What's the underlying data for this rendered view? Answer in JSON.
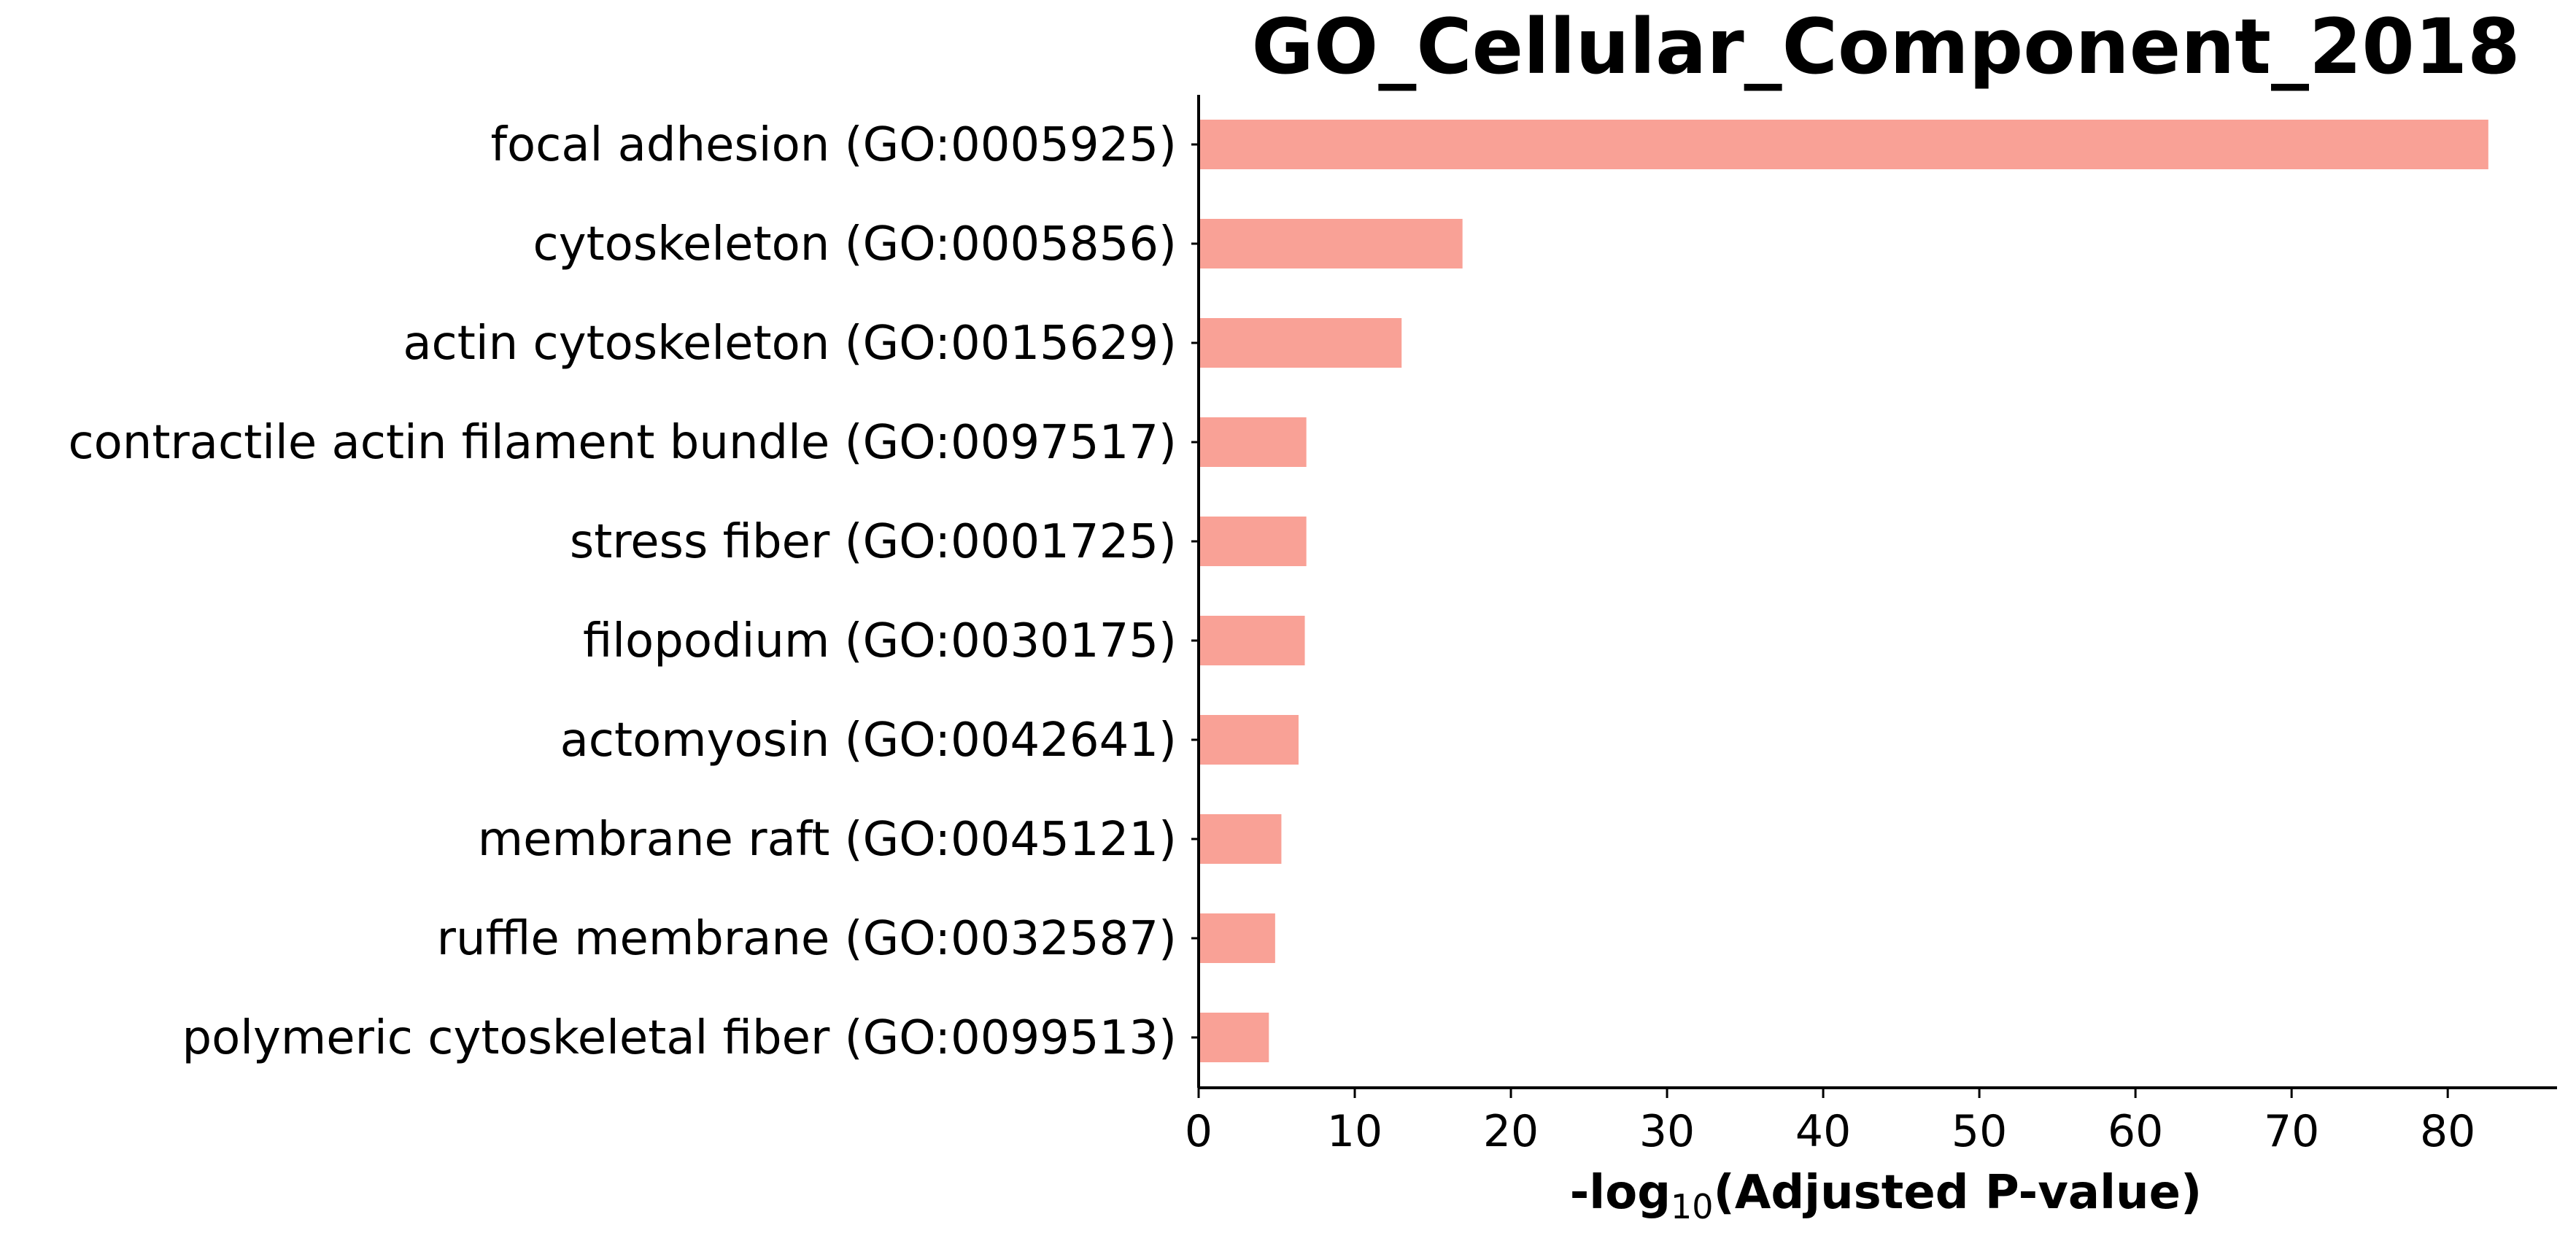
{
  "chart_data": {
    "type": "bar",
    "orientation": "horizontal",
    "title": "GO_Cellular_Component_2018",
    "xlabel": {
      "prefix": "-log",
      "subscript": "10",
      "suffix": "(Adjusted P-value)"
    },
    "ylabel": "",
    "xlim": [
      0,
      87
    ],
    "xticks": [
      0,
      10,
      20,
      30,
      40,
      50,
      60,
      70,
      80
    ],
    "categories": [
      "focal adhesion (GO:0005925)",
      "cytoskeleton (GO:0005856)",
      "actin cytoskeleton (GO:0015629)",
      "contractile actin filament bundle (GO:0097517)",
      "stress fiber (GO:0001725)",
      "filopodium (GO:0030175)",
      "actomyosin (GO:0042641)",
      "membrane raft (GO:0045121)",
      "ruffle membrane (GO:0032587)",
      "polymeric cytoskeletal fiber (GO:0099513)"
    ],
    "values": [
      82.6,
      16.9,
      13.0,
      6.9,
      6.9,
      6.8,
      6.4,
      5.3,
      4.9,
      4.5
    ],
    "bar_color": "#f9a196",
    "grid": false,
    "legend": "none"
  }
}
